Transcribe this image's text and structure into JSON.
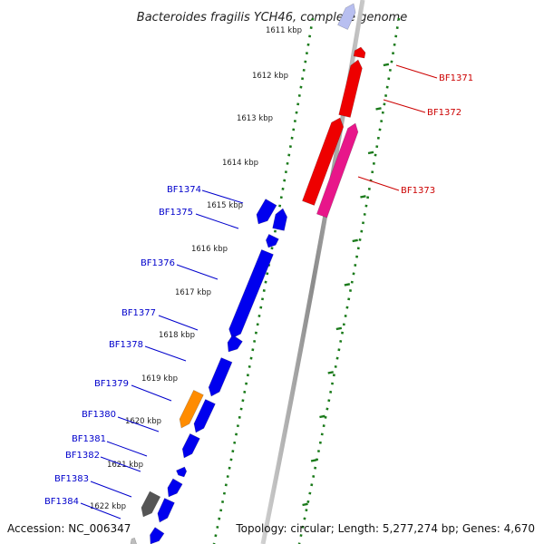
{
  "title": "Bacteroides fragilis YCH46, complete genome",
  "footer": {
    "accession": "Accession: NC_006347",
    "summary": "Topology: circular; Length: 5,277,274 bp; Genes: 4,670"
  },
  "kbp_labels": [
    "1611 kbp",
    "1612 kbp",
    "1613 kbp",
    "1614 kbp",
    "1615 kbp",
    "1616 kbp",
    "1617 kbp",
    "1618 kbp",
    "1619 kbp",
    "1620 kbp",
    "1621 kbp",
    "1622 kbp"
  ],
  "forward_genes": [
    "BF1371",
    "BF1372",
    "BF1373"
  ],
  "reverse_genes": [
    "BF1374",
    "BF1375",
    "BF1376",
    "BF1377",
    "BF1378",
    "BF1379",
    "BF1380",
    "BF1381",
    "BF1382",
    "BF1383",
    "BF1384"
  ],
  "colors": {
    "backbone": "#8c8c8c",
    "tick_dot": "#1a7a1a",
    "forward_label": "#cc0000",
    "reverse_label": "#0000cc",
    "gene_blue": "#0000ee",
    "gene_red": "#ee0000",
    "gene_pink": "#e8168a",
    "gene_orange": "#ff8c00",
    "gene_gray": "#555555"
  }
}
